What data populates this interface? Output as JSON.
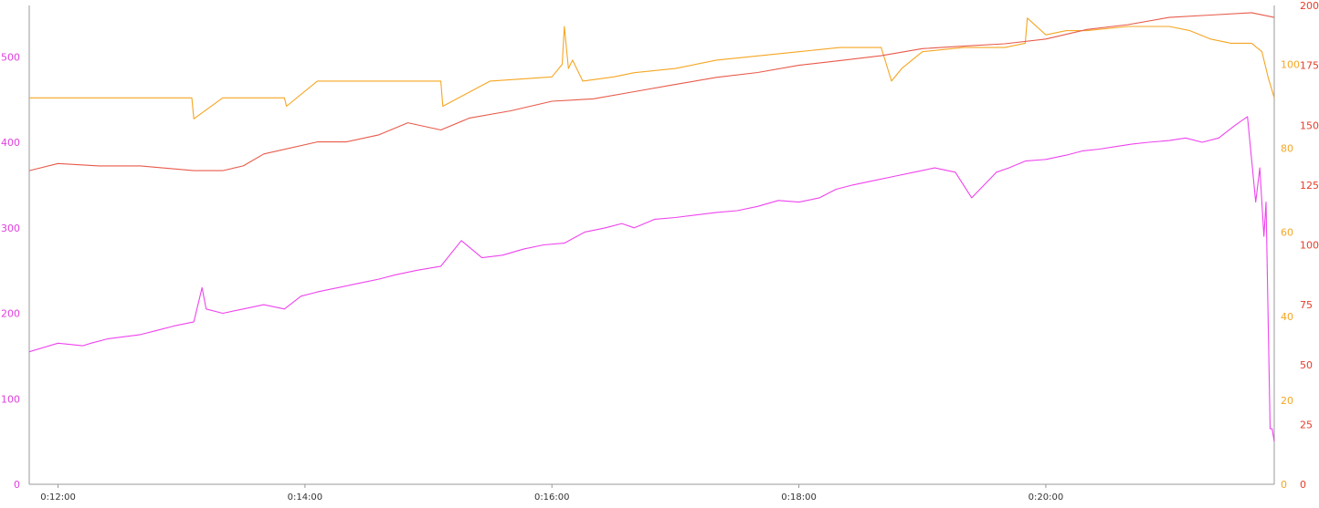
{
  "chart_data": {
    "type": "line",
    "title": "",
    "xlabel": "",
    "x_unit": "seconds",
    "x_ticks": [
      {
        "value": 720,
        "label": "0:12:00"
      },
      {
        "value": 840,
        "label": "0:14:00"
      },
      {
        "value": 960,
        "label": "0:16:00"
      },
      {
        "value": 1080,
        "label": "0:18:00"
      },
      {
        "value": 1200,
        "label": "0:20:00"
      }
    ],
    "xlim": [
      706,
      1311
    ],
    "axes": {
      "left": {
        "color": "#e040e0",
        "ylim": [
          0,
          560
        ],
        "ticks": [
          0,
          100,
          200,
          300,
          400,
          500
        ]
      },
      "right_inner": {
        "color": "#f5a623",
        "ylim": [
          0,
          114
        ],
        "ticks": [
          0,
          20,
          40,
          60,
          80,
          100
        ]
      },
      "right_outer": {
        "color": "#e83c2a",
        "ylim": [
          0,
          200
        ],
        "ticks": [
          0,
          25,
          50,
          75,
          100,
          125,
          150,
          175,
          200
        ]
      }
    },
    "series": [
      {
        "axis": "left",
        "color": "#ee44ee",
        "x": [
          706,
          720,
          732,
          736,
          744,
          750,
          760,
          768,
          776,
          786,
          790,
          792,
          800,
          810,
          820,
          830,
          838,
          846,
          856,
          866,
          876,
          884,
          894,
          906,
          916,
          926,
          936,
          946,
          956,
          966,
          976,
          986,
          994,
          1000,
          1010,
          1020,
          1030,
          1040,
          1050,
          1060,
          1070,
          1080,
          1090,
          1098,
          1106,
          1116,
          1126,
          1136,
          1146,
          1156,
          1164,
          1172,
          1176,
          1182,
          1190,
          1200,
          1210,
          1218,
          1226,
          1234,
          1242,
          1250,
          1260,
          1268,
          1276,
          1284,
          1292,
          1298,
          1302,
          1304,
          1306,
          1307,
          1309,
          1310,
          1311
        ],
        "y": [
          155,
          165,
          162,
          165,
          170,
          172,
          175,
          180,
          185,
          190,
          230,
          205,
          200,
          205,
          210,
          205,
          220,
          225,
          230,
          235,
          240,
          245,
          250,
          255,
          285,
          265,
          268,
          275,
          280,
          282,
          295,
          300,
          305,
          300,
          310,
          312,
          315,
          318,
          320,
          325,
          332,
          330,
          335,
          345,
          350,
          355,
          360,
          365,
          370,
          365,
          335,
          355,
          365,
          370,
          378,
          380,
          385,
          390,
          392,
          395,
          398,
          400,
          402,
          405,
          400,
          405,
          420,
          430,
          330,
          370,
          290,
          330,
          65,
          65,
          50
        ]
      },
      {
        "axis": "right_inner",
        "color": "#f5a623",
        "x": [
          706,
          720,
          740,
          760,
          785,
          786,
          800,
          820,
          830,
          831,
          846,
          866,
          900,
          906,
          907,
          930,
          960,
          965,
          966,
          968,
          970,
          975,
          990,
          1000,
          1020,
          1040,
          1060,
          1080,
          1100,
          1120,
          1125,
          1130,
          1140,
          1160,
          1180,
          1190,
          1191,
          1200,
          1210,
          1220,
          1240,
          1260,
          1270,
          1280,
          1290,
          1300,
          1305,
          1308,
          1311
        ],
        "y": [
          92,
          92,
          92,
          92,
          92,
          87,
          92,
          92,
          92,
          90,
          96,
          96,
          96,
          96,
          90,
          96,
          97,
          100,
          109,
          99,
          101,
          96,
          97,
          98,
          99,
          101,
          102,
          103,
          104,
          104,
          96,
          99,
          103,
          104,
          104,
          105,
          111,
          107,
          108,
          108,
          109,
          109,
          108,
          106,
          105,
          105,
          103,
          97,
          92
        ]
      },
      {
        "axis": "right_outer",
        "color": "#e85a4a",
        "x": [
          706,
          720,
          740,
          760,
          786,
          800,
          810,
          820,
          846,
          860,
          876,
          890,
          906,
          920,
          940,
          960,
          980,
          1000,
          1020,
          1040,
          1060,
          1080,
          1100,
          1120,
          1140,
          1160,
          1180,
          1200,
          1220,
          1240,
          1260,
          1280,
          1300,
          1311
        ],
        "y": [
          131,
          134,
          133,
          133,
          131,
          131,
          133,
          138,
          143,
          143,
          146,
          151,
          148,
          153,
          156,
          160,
          161,
          164,
          167,
          170,
          172,
          175,
          177,
          179,
          182,
          183,
          184,
          186,
          190,
          192,
          195,
          196,
          197,
          195
        ]
      }
    ]
  }
}
